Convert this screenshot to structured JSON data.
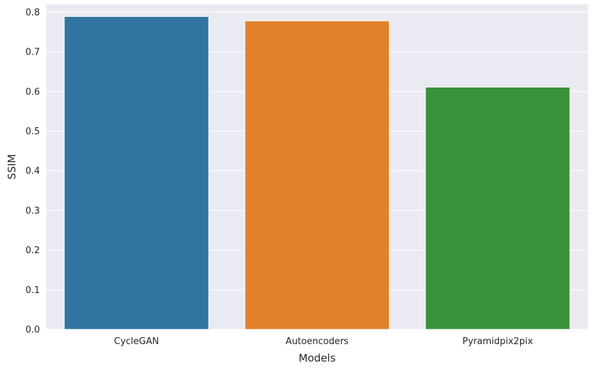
{
  "chart_data": {
    "type": "bar",
    "title": "",
    "xlabel": "Models",
    "ylabel": "SSIM",
    "categories": [
      "CycleGAN",
      "Autoencoders",
      "Pyramidpix2pix"
    ],
    "values": [
      0.789,
      0.778,
      0.611
    ],
    "ylim": [
      0,
      0.82
    ],
    "yticks": [
      0.0,
      0.1,
      0.2,
      0.3,
      0.4,
      0.5,
      0.6,
      0.7,
      0.8
    ],
    "ytick_labels": [
      "0.0",
      "0.1",
      "0.2",
      "0.3",
      "0.4",
      "0.5",
      "0.6",
      "0.7",
      "0.8"
    ],
    "grid": true,
    "colors": [
      "#3274a1",
      "#e1812c",
      "#3a923a"
    ],
    "background": "#eaeaf2"
  }
}
